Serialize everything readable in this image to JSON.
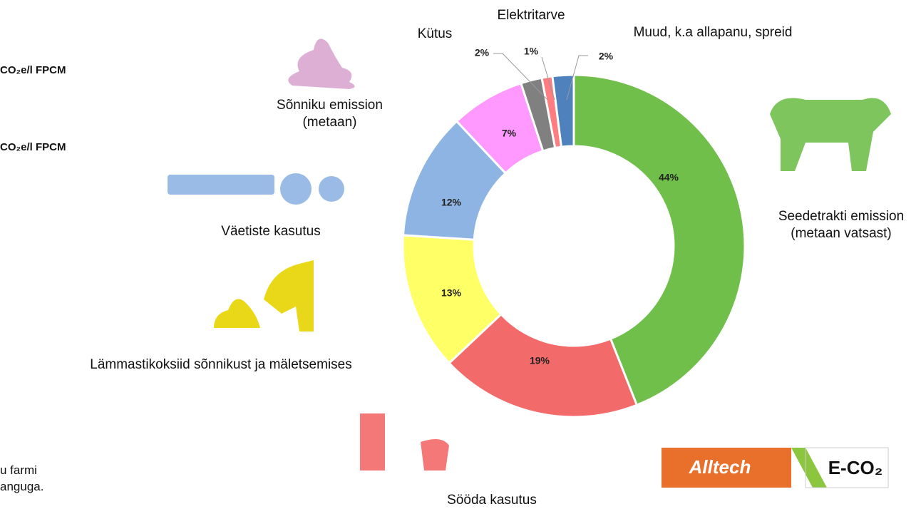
{
  "chart_data": {
    "type": "pie",
    "donut": true,
    "categories": [
      "Seedetrakti emission (metaan vatsast)",
      "Sööda kasutus",
      "Lämmastikoksiid sõnnikust ja mäletsemises",
      "Väetiste kasutus",
      "Sõnniku emission (metaan)",
      "Kütus",
      "Elektritarve",
      "Muud, k.a allapanu, spreid"
    ],
    "values": [
      44,
      19,
      13,
      12,
      7,
      2,
      1,
      2
    ],
    "value_labels": [
      "44%",
      "19%",
      "13%",
      "12%",
      "7%",
      "2%",
      "1%",
      "2%"
    ],
    "colors": [
      "#70bf4b",
      "#f36a6a",
      "#ffff66",
      "#8eb4e3",
      "#ff99ff",
      "#808080",
      "#ff7c80",
      "#4f81bd"
    ]
  },
  "side_texts": [
    "CO₂e/l FPCM",
    "CO₂e/l FPCM",
    "u farmi",
    "anguga."
  ],
  "logo": {
    "brand": "Alltech",
    "product": "E-CO₂"
  }
}
